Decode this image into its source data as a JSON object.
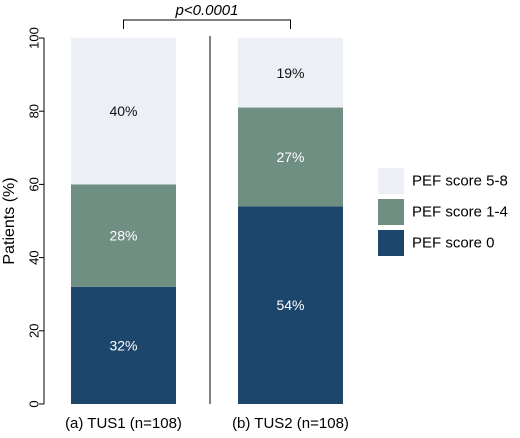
{
  "chart_data": {
    "type": "bar",
    "stacked": true,
    "percent": true,
    "categories": [
      "(a) TUS1 (n=108)",
      "(b) TUS2 (n=108)"
    ],
    "series": [
      {
        "name": "PEF score 0",
        "values": [
          32,
          54
        ],
        "labels": [
          "32%",
          "54%"
        ],
        "color": "#1c466c",
        "label_color": "#ffffff"
      },
      {
        "name": "PEF score 1-4",
        "values": [
          28,
          27
        ],
        "labels": [
          "28%",
          "27%"
        ],
        "color": "#6f8f83",
        "label_color": "#ffffff"
      },
      {
        "name": "PEF score 5-8",
        "values": [
          40,
          19
        ],
        "labels": [
          "40%",
          "19%"
        ],
        "color": "#eceff5",
        "label_color": "#111111"
      }
    ],
    "legend_order": [
      "PEF score 5-8",
      "PEF score 1-4",
      "PEF score 0"
    ],
    "ylabel": "Patients (%)",
    "yticks": [
      "0",
      "20",
      "40",
      "60",
      "80",
      "100"
    ],
    "ylim": [
      0,
      100
    ],
    "annotation": "p<0.0001",
    "grid": false,
    "legend_position": "right"
  }
}
